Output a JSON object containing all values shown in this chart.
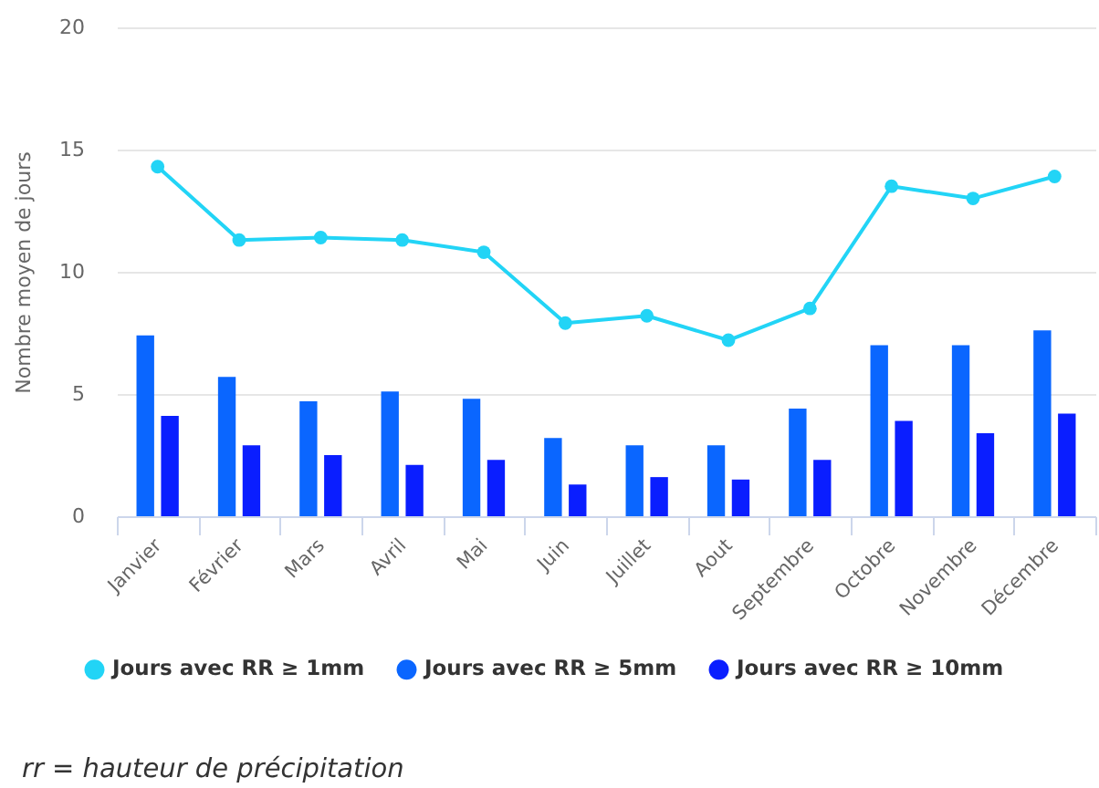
{
  "chart_data": {
    "type": "bar",
    "categories": [
      "Janvier",
      "Février",
      "Mars",
      "Avril",
      "Mai",
      "Juin",
      "Juillet",
      "Aout",
      "Septembre",
      "Octobre",
      "Novembre",
      "Décembre"
    ],
    "ylabel": "Nombre moyen de jours",
    "ylim": [
      0,
      20
    ],
    "yticks": [
      0,
      5,
      10,
      15,
      20
    ],
    "grid": "y",
    "legend": "bottom",
    "marker": "circle",
    "annotations": [
      "rr = hauteur de précipitation"
    ],
    "series": [
      {
        "name": "Jours avec RR ≥ 1mm",
        "type": "line",
        "color": "#22d4f6",
        "values": [
          14.3,
          11.3,
          11.4,
          11.3,
          10.8,
          7.9,
          8.2,
          7.2,
          8.5,
          13.5,
          13.0,
          13.9
        ]
      },
      {
        "name": "Jours avec RR ≥ 5mm",
        "color": "#0a66ff",
        "values": [
          7.4,
          5.7,
          4.7,
          5.1,
          4.8,
          3.2,
          2.9,
          2.9,
          4.4,
          7.0,
          7.0,
          7.6
        ]
      },
      {
        "name": "Jours avec RR ≥ 10mm",
        "color": "#0a1eff",
        "values": [
          4.1,
          2.9,
          2.5,
          2.1,
          2.3,
          1.3,
          1.6,
          1.5,
          2.3,
          3.9,
          3.4,
          4.2
        ]
      }
    ]
  }
}
